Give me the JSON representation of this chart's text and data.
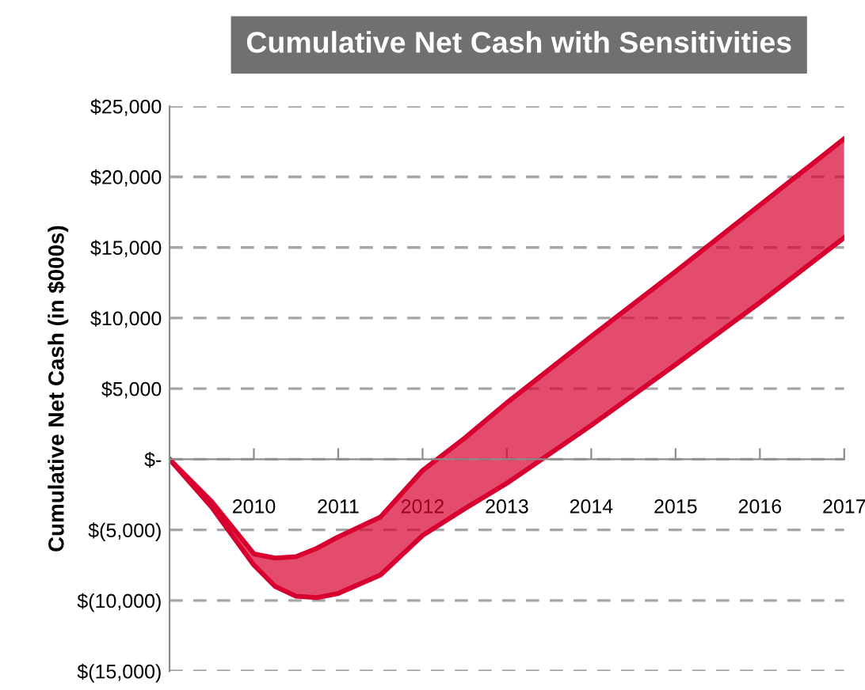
{
  "chart_data": {
    "type": "line",
    "title": "Cumulative Net Cash with Sensitivities",
    "ylabel": "Cumulative Net Cash (in $000s)",
    "x": [
      2009,
      2009.5,
      2010,
      2010.25,
      2010.5,
      2010.75,
      2011,
      2011.5,
      2012,
      2012.5,
      2013,
      2014,
      2015,
      2016,
      2017
    ],
    "series": [
      {
        "color": "#d8002f",
        "values": [
          0,
          -3000,
          -6700,
          -7000,
          -6900,
          -6300,
          -5500,
          -4100,
          -800,
          1500,
          4000,
          8700,
          13300,
          18000,
          22700
        ],
        "lower": [
          0,
          -3400,
          -7500,
          -9000,
          -9700,
          -9800,
          -9500,
          -8200,
          -5400,
          -3500,
          -1700,
          2400,
          6700,
          11100,
          15700
        ],
        "upper": [
          0,
          -3000,
          -6700,
          -7000,
          -6900,
          -6300,
          -5500,
          -4100,
          -800,
          1500,
          4000,
          8700,
          13300,
          18000,
          22700
        ]
      },
      {
        "color": "#d8002f",
        "values": [
          0,
          -3400,
          -7500,
          -9000,
          -9700,
          -9800,
          -9500,
          -8200,
          -5400,
          -3500,
          -1700,
          2400,
          6700,
          11100,
          15700
        ]
      }
    ],
    "xlim": [
      2009,
      2017
    ],
    "xticks": [
      2010,
      2011,
      2012,
      2013,
      2014,
      2015,
      2016,
      2017
    ],
    "ylim": [
      -15000,
      25000
    ],
    "yticks": [
      {
        "value": -15000,
        "label": "$(15,000)"
      },
      {
        "value": -10000,
        "label": "$(10,000)"
      },
      {
        "value": -5000,
        "label": "$(5,000)"
      },
      {
        "value": 0,
        "label": "$-"
      },
      {
        "value": 5000,
        "label": "$5,000"
      },
      {
        "value": 10000,
        "label": "$10,000"
      },
      {
        "value": 15000,
        "label": "$15,000"
      },
      {
        "value": 20000,
        "label": "$20,000"
      },
      {
        "value": 25000,
        "label": "$25,000"
      }
    ],
    "grid": "y",
    "legend": false
  }
}
